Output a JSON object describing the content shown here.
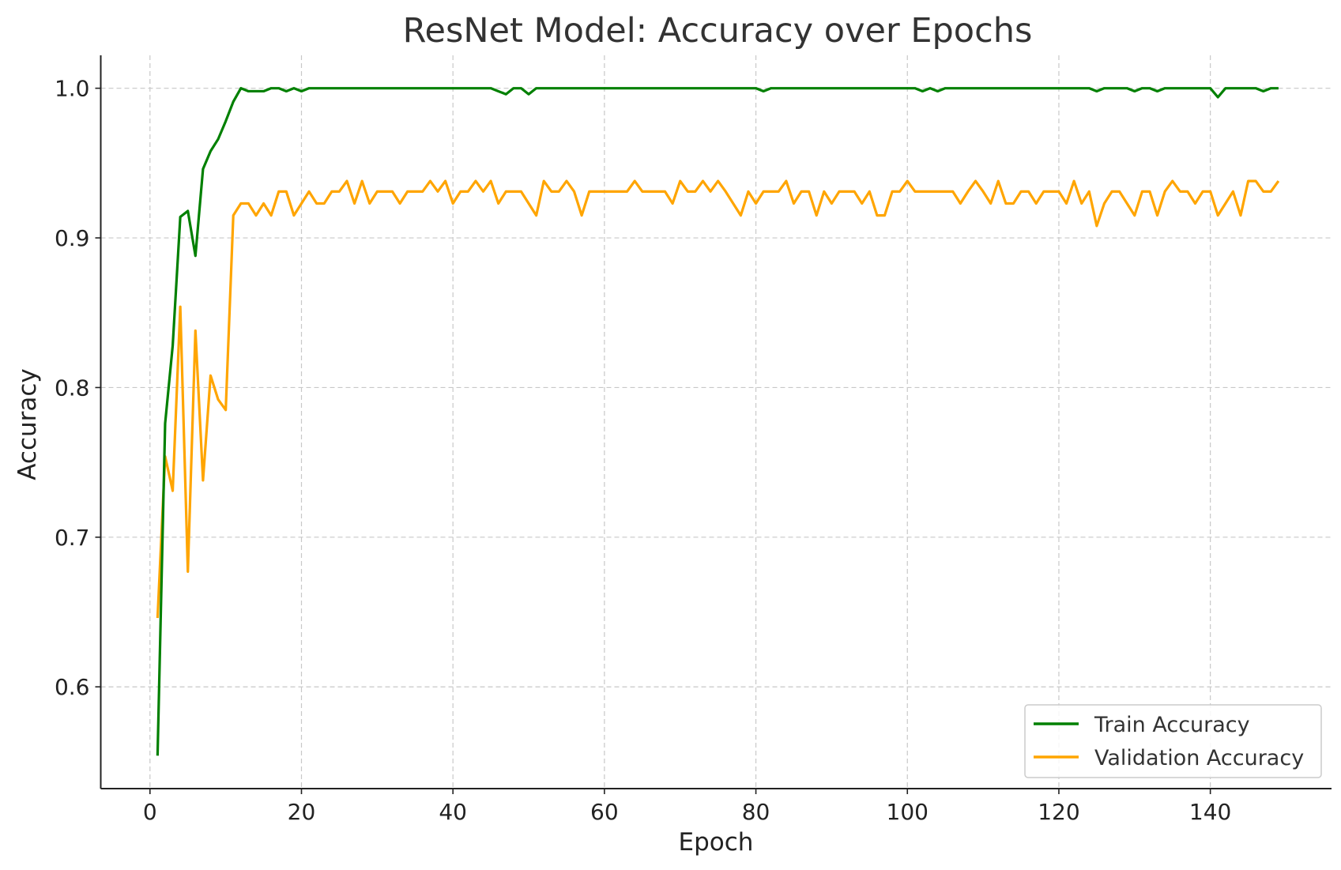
{
  "chart_data": {
    "type": "line",
    "title": "ResNet Model: Accuracy over Epochs",
    "xlabel": "Epoch",
    "ylabel": "Accuracy",
    "xlim": [
      -6.5,
      156
    ],
    "ylim": [
      0.532,
      1.022
    ],
    "xticks": [
      0,
      20,
      40,
      60,
      80,
      100,
      120,
      140
    ],
    "yticks": [
      0.6,
      0.7,
      0.8,
      0.9,
      1.0
    ],
    "xtick_labels": [
      "0",
      "20",
      "40",
      "60",
      "80",
      "100",
      "120",
      "140"
    ],
    "ytick_labels": [
      "0.6",
      "0.7",
      "0.8",
      "0.9",
      "1.0"
    ],
    "grid": true,
    "legend_position": "bottom-right",
    "series": [
      {
        "name": "Train Accuracy",
        "color": "#008000",
        "x": [
          1,
          2,
          3,
          4,
          5,
          6,
          7,
          8,
          9,
          10,
          11,
          12,
          13,
          14,
          15,
          16,
          17,
          18,
          19,
          20,
          21,
          22,
          23,
          24,
          25,
          26,
          27,
          28,
          29,
          30,
          31,
          32,
          33,
          34,
          35,
          36,
          37,
          38,
          39,
          40,
          41,
          42,
          43,
          44,
          45,
          46,
          47,
          48,
          49,
          50,
          51,
          52,
          53,
          54,
          55,
          56,
          57,
          58,
          59,
          60,
          61,
          62,
          63,
          64,
          65,
          66,
          67,
          68,
          69,
          70,
          71,
          72,
          73,
          74,
          75,
          76,
          77,
          78,
          79,
          80,
          81,
          82,
          83,
          84,
          85,
          86,
          87,
          88,
          89,
          90,
          91,
          92,
          93,
          94,
          95,
          96,
          97,
          98,
          99,
          100,
          101,
          102,
          103,
          104,
          105,
          106,
          107,
          108,
          109,
          110,
          111,
          112,
          113,
          114,
          115,
          116,
          117,
          118,
          119,
          120,
          121,
          122,
          123,
          124,
          125,
          126,
          127,
          128,
          129,
          130,
          131,
          132,
          133,
          134,
          135,
          136,
          137,
          138,
          139,
          140,
          141,
          142,
          143,
          144,
          145,
          146,
          147,
          148,
          149
        ],
        "values": [
          0.554,
          0.776,
          0.828,
          0.914,
          0.918,
          0.888,
          0.946,
          0.958,
          0.966,
          0.978,
          0.991,
          1.0,
          0.998,
          0.998,
          0.998,
          1.0,
          1.0,
          0.998,
          1.0,
          0.998,
          1.0,
          1.0,
          1.0,
          1.0,
          1.0,
          1.0,
          1.0,
          1.0,
          1.0,
          1.0,
          1.0,
          1.0,
          1.0,
          1.0,
          1.0,
          1.0,
          1.0,
          1.0,
          1.0,
          1.0,
          1.0,
          1.0,
          1.0,
          1.0,
          1.0,
          0.998,
          0.996,
          1.0,
          1.0,
          0.996,
          1.0,
          1.0,
          1.0,
          1.0,
          1.0,
          1.0,
          1.0,
          1.0,
          1.0,
          1.0,
          1.0,
          1.0,
          1.0,
          1.0,
          1.0,
          1.0,
          1.0,
          1.0,
          1.0,
          1.0,
          1.0,
          1.0,
          1.0,
          1.0,
          1.0,
          1.0,
          1.0,
          1.0,
          1.0,
          1.0,
          0.998,
          1.0,
          1.0,
          1.0,
          1.0,
          1.0,
          1.0,
          1.0,
          1.0,
          1.0,
          1.0,
          1.0,
          1.0,
          1.0,
          1.0,
          1.0,
          1.0,
          1.0,
          1.0,
          1.0,
          1.0,
          0.998,
          1.0,
          0.998,
          1.0,
          1.0,
          1.0,
          1.0,
          1.0,
          1.0,
          1.0,
          1.0,
          1.0,
          1.0,
          1.0,
          1.0,
          1.0,
          1.0,
          1.0,
          1.0,
          1.0,
          1.0,
          1.0,
          1.0,
          0.998,
          1.0,
          1.0,
          1.0,
          1.0,
          0.998,
          1.0,
          1.0,
          0.998,
          1.0,
          1.0,
          1.0,
          1.0,
          1.0,
          1.0,
          1.0,
          0.994,
          1.0,
          1.0,
          1.0,
          1.0,
          1.0,
          0.998,
          1.0,
          1.0
        ]
      },
      {
        "name": "Validation Accuracy",
        "color": "#ffa500",
        "x": [
          1,
          2,
          3,
          4,
          5,
          6,
          7,
          8,
          9,
          10,
          11,
          12,
          13,
          14,
          15,
          16,
          17,
          18,
          19,
          20,
          21,
          22,
          23,
          24,
          25,
          26,
          27,
          28,
          29,
          30,
          31,
          32,
          33,
          34,
          35,
          36,
          37,
          38,
          39,
          40,
          41,
          42,
          43,
          44,
          45,
          46,
          47,
          48,
          49,
          50,
          51,
          52,
          53,
          54,
          55,
          56,
          57,
          58,
          59,
          60,
          61,
          62,
          63,
          64,
          65,
          66,
          67,
          68,
          69,
          70,
          71,
          72,
          73,
          74,
          75,
          76,
          77,
          78,
          79,
          80,
          81,
          82,
          83,
          84,
          85,
          86,
          87,
          88,
          89,
          90,
          91,
          92,
          93,
          94,
          95,
          96,
          97,
          98,
          99,
          100,
          101,
          102,
          103,
          104,
          105,
          106,
          107,
          108,
          109,
          110,
          111,
          112,
          113,
          114,
          115,
          116,
          117,
          118,
          119,
          120,
          121,
          122,
          123,
          124,
          125,
          126,
          127,
          128,
          129,
          130,
          131,
          132,
          133,
          134,
          135,
          136,
          137,
          138,
          139,
          140,
          141,
          142,
          143,
          144,
          145,
          146,
          147,
          148,
          149
        ],
        "values": [
          0.646,
          0.754,
          0.731,
          0.854,
          0.677,
          0.838,
          0.738,
          0.808,
          0.792,
          0.785,
          0.915,
          0.923,
          0.923,
          0.915,
          0.923,
          0.915,
          0.931,
          0.931,
          0.915,
          0.923,
          0.931,
          0.923,
          0.923,
          0.931,
          0.931,
          0.938,
          0.923,
          0.938,
          0.923,
          0.931,
          0.931,
          0.931,
          0.923,
          0.931,
          0.931,
          0.931,
          0.938,
          0.931,
          0.938,
          0.923,
          0.931,
          0.931,
          0.938,
          0.931,
          0.938,
          0.923,
          0.931,
          0.931,
          0.931,
          0.923,
          0.915,
          0.938,
          0.931,
          0.931,
          0.938,
          0.931,
          0.915,
          0.931,
          0.931,
          0.931,
          0.931,
          0.931,
          0.931,
          0.938,
          0.931,
          0.931,
          0.931,
          0.931,
          0.923,
          0.938,
          0.931,
          0.931,
          0.938,
          0.931,
          0.938,
          0.931,
          0.923,
          0.915,
          0.931,
          0.923,
          0.931,
          0.931,
          0.931,
          0.938,
          0.923,
          0.931,
          0.931,
          0.915,
          0.931,
          0.923,
          0.931,
          0.931,
          0.931,
          0.923,
          0.931,
          0.915,
          0.915,
          0.931,
          0.931,
          0.938,
          0.931,
          0.931,
          0.931,
          0.931,
          0.931,
          0.931,
          0.923,
          0.931,
          0.938,
          0.931,
          0.923,
          0.938,
          0.923,
          0.923,
          0.931,
          0.931,
          0.923,
          0.931,
          0.931,
          0.931,
          0.923,
          0.938,
          0.923,
          0.931,
          0.908,
          0.923,
          0.931,
          0.931,
          0.923,
          0.915,
          0.931,
          0.931,
          0.915,
          0.931,
          0.938,
          0.931,
          0.931,
          0.923,
          0.931,
          0.931,
          0.915,
          0.923,
          0.931,
          0.915,
          0.938,
          0.938,
          0.931,
          0.931,
          0.938
        ]
      }
    ]
  }
}
